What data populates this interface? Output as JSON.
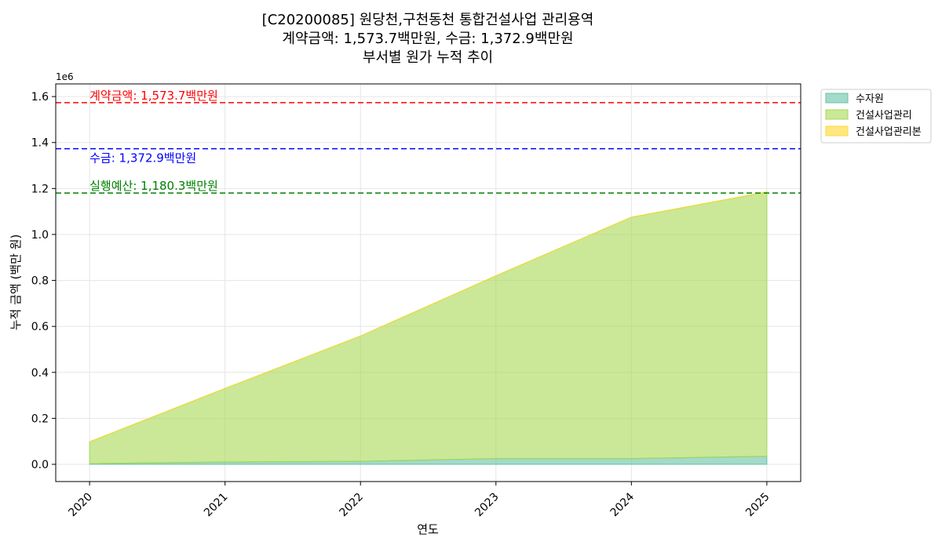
{
  "chart_data": {
    "type": "area",
    "title_lines": [
      "[C20200085] 원당천,구천동천 통합건설사업 관리용역",
      "계약금액: 1,573.7백만원, 수금: 1,372.9백만원",
      "부서별 원가 누적 추이"
    ],
    "xlabel": "연도",
    "ylabel": "누적 금액 (백만 원)",
    "y_multiplier_label": "1e6",
    "x": [
      "2020",
      "2021",
      "2022",
      "2023",
      "2024",
      "2025"
    ],
    "xlim": [
      2019.75,
      2025.25
    ],
    "ylim": [
      -75000,
      1655000
    ],
    "yticks": [
      0,
      200000,
      400000,
      600000,
      800000,
      1000000,
      1200000,
      1400000,
      1600000
    ],
    "ytick_labels": [
      "0.0",
      "0.2",
      "0.4",
      "0.6",
      "0.8",
      "1.0",
      "1.2",
      "1.4",
      "1.6"
    ],
    "stacked": true,
    "grid": true,
    "legend_position": "outside-top-right",
    "series": [
      {
        "name": "수자원",
        "color": "#66c2a5",
        "values": [
          3000,
          10000,
          13000,
          25000,
          25000,
          35000
        ]
      },
      {
        "name": "건설사업관리",
        "color": "#a6d854",
        "values": [
          95000,
          320000,
          545000,
          795000,
          1050000,
          1150000
        ]
      },
      {
        "name": "건설사업관리본",
        "color": "#ffd92f",
        "values": [
          0,
          0,
          0,
          0,
          0,
          0
        ]
      }
    ],
    "reference_lines": [
      {
        "label": "계약금액: 1,573.7백만원",
        "value": 1573700,
        "color": "#ff0000"
      },
      {
        "label": "수금: 1,372.9백만원",
        "value": 1372900,
        "color": "#0000ff"
      },
      {
        "label": "실행예산: 1,180.3백만원",
        "value": 1180300,
        "color": "#008000"
      }
    ]
  }
}
